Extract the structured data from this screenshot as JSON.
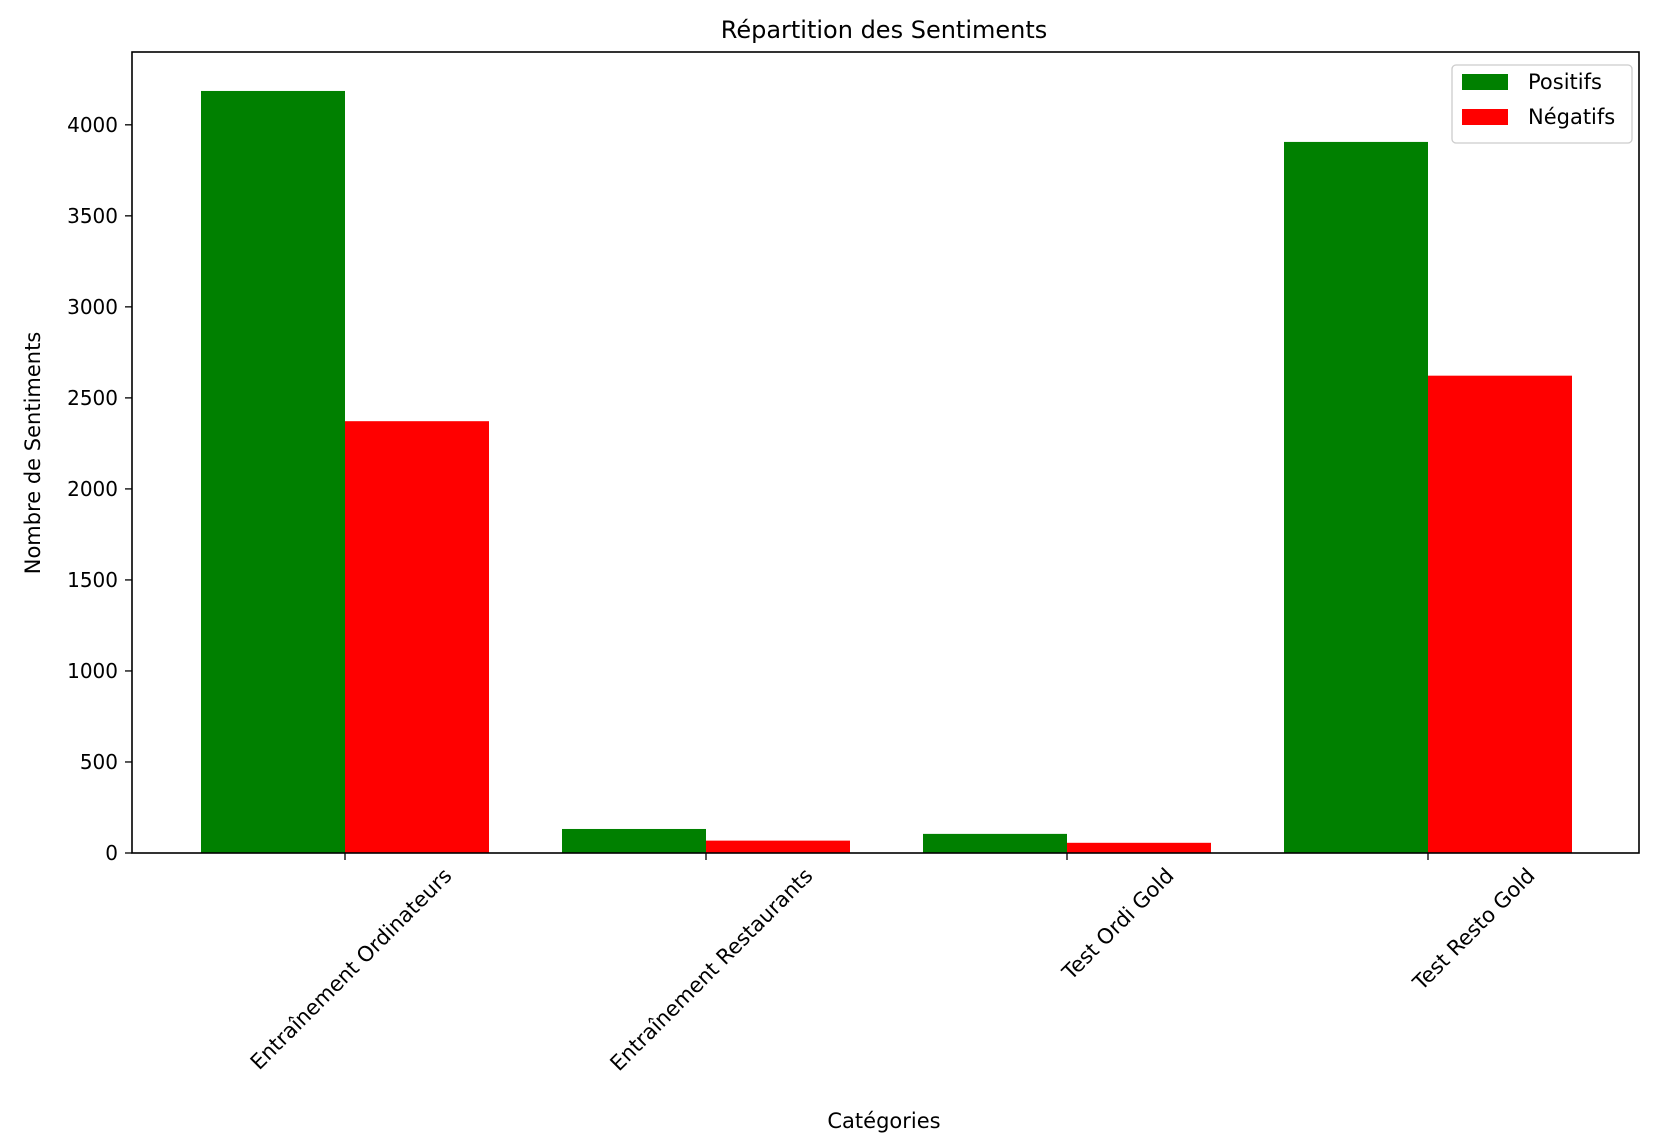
{
  "chart_data": {
    "type": "bar",
    "title": "Répartition des Sentiments",
    "xlabel": "Catégories",
    "ylabel": "Nombre de Sentiments",
    "categories": [
      "Entraînement Ordinateurs",
      "Entraînement Restaurants",
      "Test Ordi Gold",
      "Test Resto Gold"
    ],
    "series": [
      {
        "name": "Positifs",
        "color": "#008000",
        "values": [
          4186,
          132,
          105,
          3906
        ]
      },
      {
        "name": "Négatifs",
        "color": "#ff0000",
        "values": [
          2372,
          68,
          56,
          2622
        ]
      }
    ],
    "ylim": [
      0,
      4400
    ],
    "yticks": [
      0,
      500,
      1000,
      1500,
      2000,
      2500,
      3000,
      3500,
      4000
    ],
    "legend_position": "top-right",
    "grid": false
  }
}
